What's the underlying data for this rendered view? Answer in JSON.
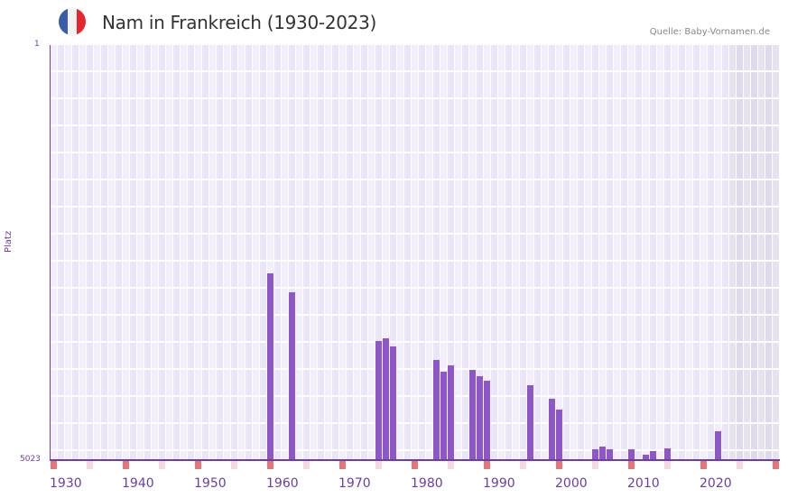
{
  "header": {
    "title": "Nam in Frankreich (1930-2023)",
    "source": "Quelle: Baby-Vornamen.de",
    "flag_colors": [
      "#3a5ba8",
      "#f2f2f2",
      "#e5262e"
    ]
  },
  "colors": {
    "bar": "#8e56c7",
    "axis": "#6a3fa0",
    "cell_a": "#f2eefb",
    "cell_b": "#ebe6f7",
    "future_a": "#e6e2ef",
    "future_b": "#dfdaeb",
    "decade_marker": "#e57579",
    "half_decade_marker": "#f5d9e2"
  },
  "chart_data": {
    "type": "bar",
    "title": "Nam in Frankreich (1930-2023)",
    "xlabel": "",
    "ylabel": "Platz",
    "y_inverted": true,
    "ylim": [
      5023,
      1
    ],
    "y_ticks": [
      "1",
      "5023"
    ],
    "x_range": [
      1930,
      2030
    ],
    "x_tick_labels": [
      "1930",
      "1940",
      "1950",
      "1960",
      "1970",
      "1980",
      "1990",
      "2000",
      "2010",
      "2020"
    ],
    "future_shaded_from": 2024,
    "grid": true,
    "x": [
      1960,
      1963,
      1975,
      1976,
      1977,
      1983,
      1984,
      1985,
      1988,
      1989,
      1990,
      1996,
      1999,
      2000,
      2005,
      2006,
      2007,
      2010,
      2012,
      2013,
      2015,
      2022
    ],
    "values": [
      2763,
      2992,
      3582,
      3549,
      3647,
      3811,
      3953,
      3877,
      3931,
      4008,
      4062,
      4117,
      4281,
      4412,
      4892,
      4859,
      4892,
      4892,
      4957,
      4914,
      4881,
      4674
    ]
  }
}
